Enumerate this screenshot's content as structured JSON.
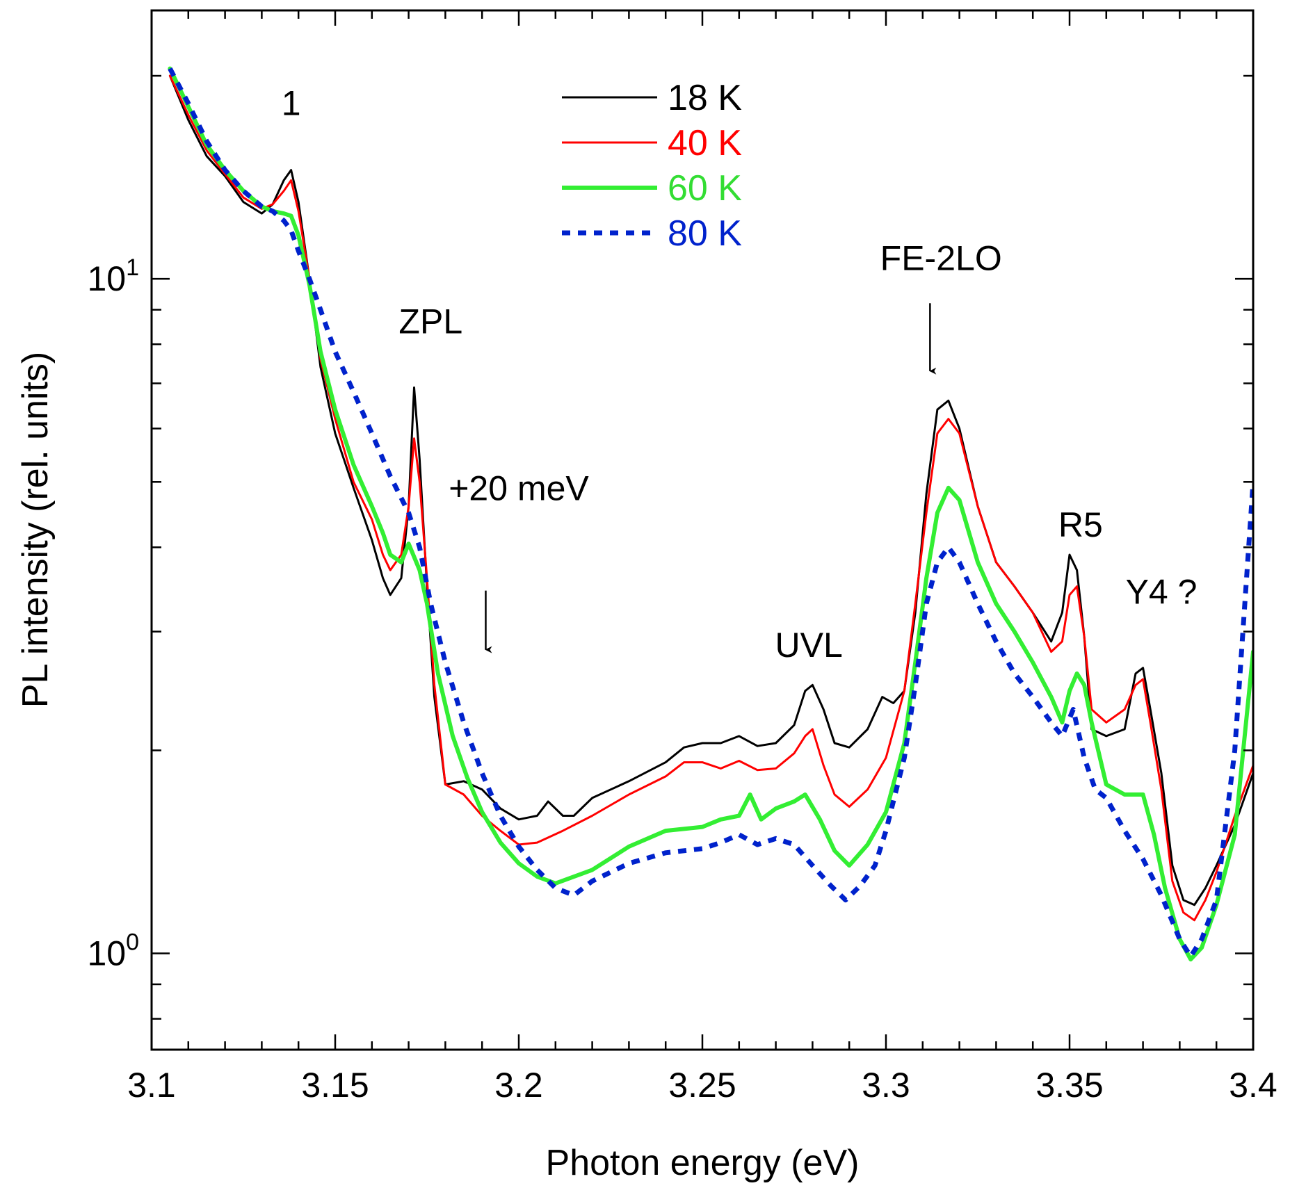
{
  "chart_data": {
    "type": "line",
    "title": "",
    "xlabel": "Photon energy (eV)",
    "ylabel": "PL intensity (rel. units)",
    "x_scale": "linear",
    "y_scale": "log",
    "xlim": [
      3.1,
      3.4
    ],
    "ylim": [
      0.72,
      25.0
    ],
    "grid": false,
    "legend_position": "top-center",
    "x_ticks": [
      3.1,
      3.15,
      3.2,
      3.25,
      3.3,
      3.35,
      3.4
    ],
    "x_tick_labels": [
      "3.1",
      "3.15",
      "3.2",
      "3.25",
      "3.3",
      "3.35",
      "3.4"
    ],
    "y_ticks": [
      {
        "value": 1,
        "base": "10",
        "exp": "0"
      },
      {
        "value": 10,
        "base": "10",
        "exp": "1"
      }
    ],
    "y_minor_ticks": [
      0.8,
      0.9,
      2,
      3,
      4,
      5,
      6,
      7,
      8,
      9,
      20
    ],
    "series": [
      {
        "name": "18 K",
        "color": "#000000",
        "style": "solid",
        "width": 3,
        "x": [
          3.105,
          3.11,
          3.115,
          3.12,
          3.125,
          3.13,
          3.133,
          3.136,
          3.138,
          3.14,
          3.143,
          3.146,
          3.15,
          3.155,
          3.16,
          3.163,
          3.165,
          3.168,
          3.17,
          3.1715,
          3.173,
          3.175,
          3.177,
          3.18,
          3.185,
          3.19,
          3.195,
          3.2,
          3.205,
          3.208,
          3.212,
          3.215,
          3.22,
          3.23,
          3.24,
          3.245,
          3.25,
          3.255,
          3.26,
          3.265,
          3.27,
          3.275,
          3.278,
          3.28,
          3.283,
          3.286,
          3.29,
          3.295,
          3.299,
          3.302,
          3.305,
          3.308,
          3.311,
          3.314,
          3.317,
          3.32,
          3.325,
          3.33,
          3.335,
          3.34,
          3.345,
          3.348,
          3.35,
          3.352,
          3.354,
          3.356,
          3.36,
          3.365,
          3.368,
          3.37,
          3.372,
          3.375,
          3.378,
          3.381,
          3.384,
          3.387,
          3.39,
          3.395,
          3.4
        ],
        "y": [
          20.0,
          17.2,
          15.2,
          14.2,
          13.0,
          12.5,
          12.9,
          14.0,
          14.5,
          13.0,
          10.0,
          7.4,
          5.9,
          4.9,
          4.1,
          3.6,
          3.4,
          3.6,
          4.6,
          6.9,
          5.4,
          3.5,
          2.4,
          1.78,
          1.8,
          1.75,
          1.64,
          1.58,
          1.6,
          1.68,
          1.6,
          1.6,
          1.7,
          1.8,
          1.92,
          2.02,
          2.05,
          2.05,
          2.1,
          2.03,
          2.05,
          2.18,
          2.45,
          2.5,
          2.3,
          2.05,
          2.02,
          2.15,
          2.4,
          2.35,
          2.45,
          3.2,
          4.8,
          6.4,
          6.6,
          6.0,
          4.6,
          3.8,
          3.5,
          3.2,
          2.9,
          3.2,
          3.9,
          3.7,
          2.95,
          2.15,
          2.1,
          2.15,
          2.6,
          2.65,
          2.3,
          1.85,
          1.35,
          1.2,
          1.18,
          1.25,
          1.35,
          1.55,
          1.85
        ]
      },
      {
        "name": "40 K",
        "color": "#ff0000",
        "style": "solid",
        "width": 3,
        "x": [
          3.105,
          3.11,
          3.115,
          3.12,
          3.125,
          3.13,
          3.133,
          3.136,
          3.138,
          3.14,
          3.143,
          3.146,
          3.15,
          3.155,
          3.16,
          3.163,
          3.165,
          3.168,
          3.17,
          3.1715,
          3.173,
          3.175,
          3.177,
          3.18,
          3.185,
          3.19,
          3.195,
          3.2,
          3.205,
          3.212,
          3.22,
          3.23,
          3.24,
          3.245,
          3.25,
          3.255,
          3.26,
          3.265,
          3.27,
          3.275,
          3.278,
          3.28,
          3.283,
          3.286,
          3.29,
          3.295,
          3.3,
          3.305,
          3.308,
          3.311,
          3.314,
          3.317,
          3.32,
          3.325,
          3.33,
          3.335,
          3.34,
          3.345,
          3.348,
          3.35,
          3.352,
          3.354,
          3.356,
          3.36,
          3.365,
          3.368,
          3.37,
          3.372,
          3.375,
          3.378,
          3.381,
          3.384,
          3.387,
          3.39,
          3.395,
          3.4
        ],
        "y": [
          20.0,
          17.5,
          15.5,
          14.3,
          13.2,
          12.7,
          12.9,
          13.5,
          14.0,
          12.6,
          10.0,
          7.6,
          6.2,
          5.0,
          4.4,
          3.9,
          3.7,
          3.9,
          4.6,
          5.8,
          5.0,
          3.6,
          2.5,
          1.78,
          1.72,
          1.6,
          1.52,
          1.45,
          1.46,
          1.52,
          1.6,
          1.72,
          1.83,
          1.92,
          1.92,
          1.88,
          1.93,
          1.87,
          1.88,
          1.98,
          2.1,
          2.15,
          1.9,
          1.72,
          1.65,
          1.75,
          1.95,
          2.45,
          3.3,
          4.5,
          5.9,
          6.2,
          5.9,
          4.6,
          3.8,
          3.5,
          3.2,
          2.8,
          2.9,
          3.4,
          3.5,
          2.95,
          2.3,
          2.2,
          2.3,
          2.5,
          2.55,
          2.2,
          1.75,
          1.28,
          1.15,
          1.12,
          1.2,
          1.32,
          1.6,
          1.9
        ]
      },
      {
        "name": "60 K",
        "color": "#33ee33",
        "style": "solid",
        "width": 6,
        "x": [
          3.105,
          3.11,
          3.115,
          3.12,
          3.125,
          3.13,
          3.133,
          3.136,
          3.138,
          3.14,
          3.143,
          3.146,
          3.15,
          3.155,
          3.16,
          3.163,
          3.165,
          3.168,
          3.17,
          3.173,
          3.175,
          3.178,
          3.182,
          3.186,
          3.19,
          3.195,
          3.2,
          3.205,
          3.21,
          3.22,
          3.23,
          3.24,
          3.25,
          3.255,
          3.26,
          3.263,
          3.266,
          3.27,
          3.275,
          3.278,
          3.282,
          3.286,
          3.29,
          3.295,
          3.3,
          3.305,
          3.308,
          3.311,
          3.314,
          3.317,
          3.32,
          3.325,
          3.33,
          3.335,
          3.34,
          3.345,
          3.348,
          3.35,
          3.352,
          3.354,
          3.356,
          3.36,
          3.365,
          3.368,
          3.37,
          3.373,
          3.376,
          3.38,
          3.383,
          3.386,
          3.39,
          3.395,
          3.4
        ],
        "y": [
          20.5,
          18.0,
          15.8,
          14.5,
          13.5,
          12.8,
          12.6,
          12.5,
          12.4,
          11.6,
          9.8,
          7.8,
          6.4,
          5.3,
          4.6,
          4.2,
          3.9,
          3.8,
          4.05,
          3.7,
          3.3,
          2.6,
          2.1,
          1.82,
          1.62,
          1.46,
          1.36,
          1.3,
          1.27,
          1.33,
          1.44,
          1.52,
          1.54,
          1.58,
          1.6,
          1.72,
          1.58,
          1.64,
          1.68,
          1.72,
          1.58,
          1.42,
          1.35,
          1.45,
          1.62,
          2.05,
          2.7,
          3.6,
          4.5,
          4.9,
          4.7,
          3.8,
          3.3,
          3.0,
          2.7,
          2.4,
          2.2,
          2.45,
          2.6,
          2.5,
          2.2,
          1.78,
          1.72,
          1.72,
          1.72,
          1.5,
          1.25,
          1.05,
          0.98,
          1.02,
          1.18,
          1.5,
          2.8
        ]
      },
      {
        "name": "80 K",
        "color": "#0022cc",
        "style": "dotted",
        "width": 7,
        "x": [
          3.105,
          3.11,
          3.115,
          3.12,
          3.125,
          3.13,
          3.133,
          3.136,
          3.138,
          3.14,
          3.143,
          3.146,
          3.15,
          3.155,
          3.16,
          3.165,
          3.17,
          3.173,
          3.176,
          3.18,
          3.185,
          3.19,
          3.195,
          3.2,
          3.205,
          3.21,
          3.215,
          3.22,
          3.23,
          3.24,
          3.25,
          3.255,
          3.26,
          3.265,
          3.27,
          3.275,
          3.28,
          3.285,
          3.289,
          3.293,
          3.297,
          3.3,
          3.305,
          3.308,
          3.311,
          3.314,
          3.317,
          3.32,
          3.325,
          3.33,
          3.335,
          3.34,
          3.345,
          3.348,
          3.351,
          3.354,
          3.357,
          3.36,
          3.365,
          3.37,
          3.375,
          3.38,
          3.383,
          3.386,
          3.39,
          3.395,
          3.4
        ],
        "y": [
          20.5,
          18.2,
          16.0,
          14.5,
          13.5,
          12.8,
          12.6,
          12.2,
          11.8,
          11.0,
          10.0,
          9.0,
          7.8,
          6.8,
          5.9,
          5.1,
          4.5,
          4.0,
          3.3,
          2.7,
          2.2,
          1.85,
          1.6,
          1.44,
          1.33,
          1.25,
          1.22,
          1.28,
          1.36,
          1.41,
          1.43,
          1.46,
          1.5,
          1.45,
          1.48,
          1.45,
          1.35,
          1.26,
          1.2,
          1.26,
          1.35,
          1.52,
          1.95,
          2.5,
          3.3,
          3.8,
          4.0,
          3.8,
          3.3,
          2.9,
          2.6,
          2.4,
          2.2,
          2.1,
          2.3,
          1.95,
          1.75,
          1.7,
          1.52,
          1.38,
          1.22,
          1.05,
          0.99,
          1.05,
          1.2,
          2.0,
          5.0
        ]
      }
    ],
    "annotations": [
      {
        "text": "1",
        "x": 3.138,
        "y": 17.5
      },
      {
        "text": "ZPL",
        "x": 3.176,
        "y": 8.3
      },
      {
        "text": "+20 meV",
        "x": 3.2,
        "y": 4.7
      },
      {
        "text": "FE-2LO",
        "x": 3.315,
        "y": 10.3
      },
      {
        "text": "UVL",
        "x": 3.279,
        "y": 2.75
      },
      {
        "text": "R5",
        "x": 3.353,
        "y": 4.15
      },
      {
        "text": "Y4 ?",
        "x": 3.375,
        "y": 3.3
      }
    ],
    "arrows": [
      {
        "from": [
          3.191,
          3.45
        ],
        "to": [
          3.191,
          2.82
        ]
      },
      {
        "from": [
          3.312,
          9.2
        ],
        "to": [
          3.312,
          7.3
        ]
      }
    ]
  }
}
